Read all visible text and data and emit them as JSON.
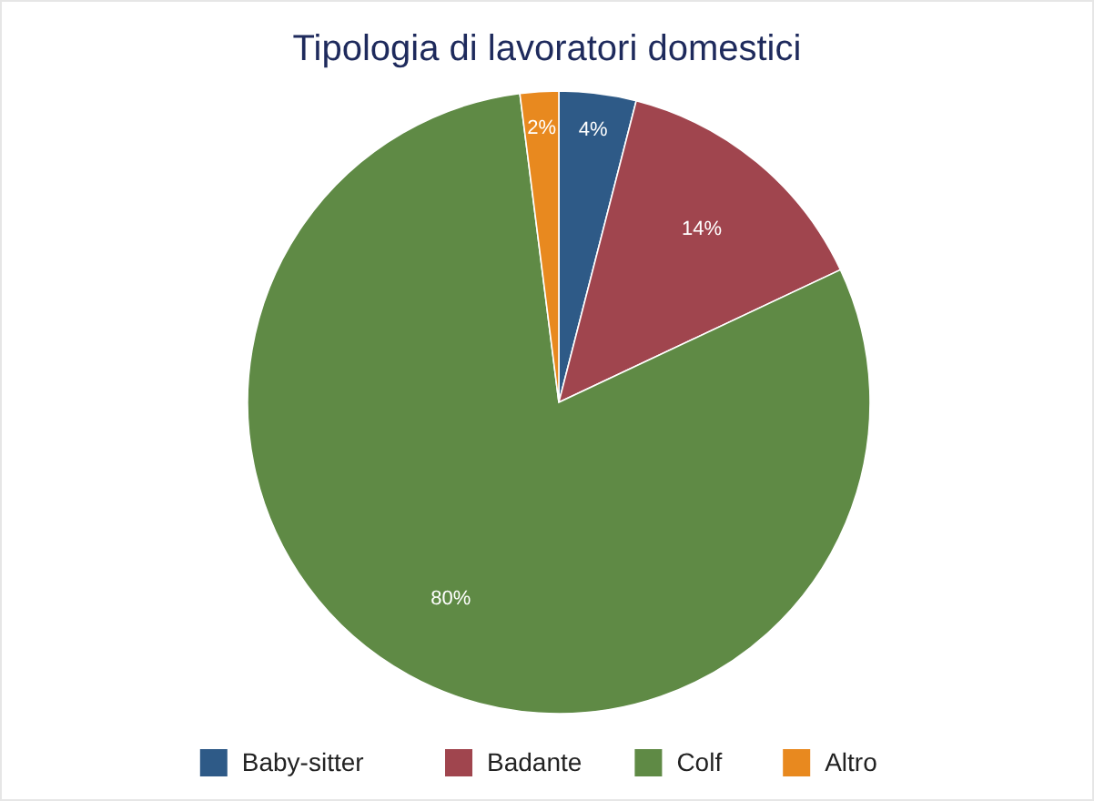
{
  "chart_data": {
    "type": "pie",
    "title": "Tipologia di lavoratori domestici",
    "categories": [
      "Baby-sitter",
      "Badante",
      "Colf",
      "Altro"
    ],
    "values": [
      4,
      14,
      80,
      2
    ],
    "colors": [
      "#2e5a87",
      "#a0454e",
      "#5f8a45",
      "#e8891f"
    ],
    "value_labels": [
      "4%",
      "14%",
      "80%",
      "2%"
    ],
    "legend": "bottom"
  }
}
